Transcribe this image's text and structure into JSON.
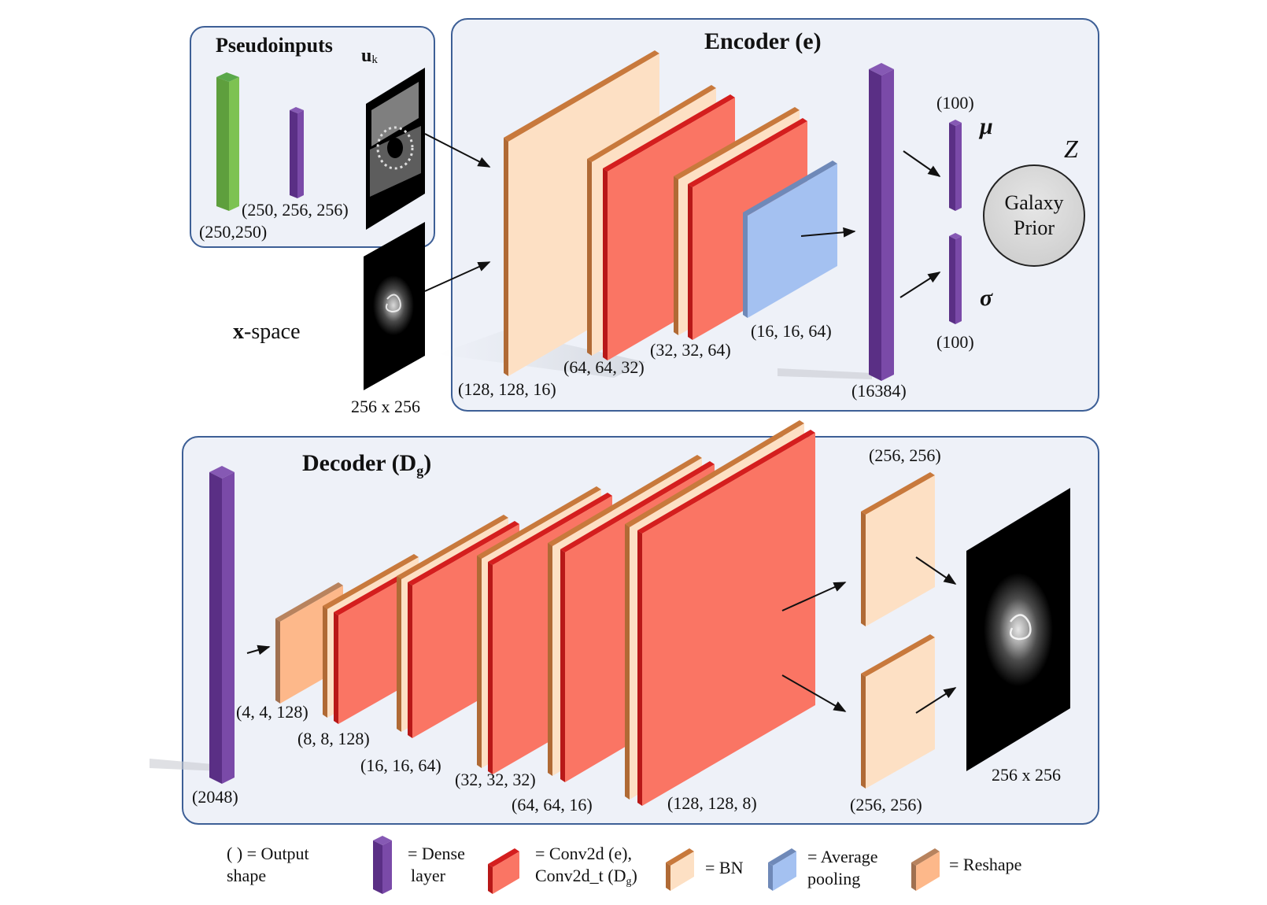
{
  "pseudo": {
    "title": "Pseudoinputs",
    "uk_main": "u",
    "uk_sub": "k",
    "shape_green": "(250,250)",
    "shape_purple": "(250, 256, 256)"
  },
  "xspace": {
    "label_bold": "x",
    "label_rest": "-space",
    "size": "256 x 256"
  },
  "encoder": {
    "title": "Encoder (e)",
    "shapes": [
      "(128, 128, 16)",
      "(64, 64, 32)",
      "(32, 32, 64)",
      "(16, 16, 64)",
      "(16384)"
    ],
    "mu_shape": "(100)",
    "sigma_shape": "(100)",
    "mu_symbol": "μ",
    "sigma_symbol": "σ",
    "z_symbol": "Z",
    "prior_line1": "Galaxy",
    "prior_line2": "Prior"
  },
  "decoder": {
    "title_main": "Decoder (D",
    "title_sub": "g",
    "title_close": ")",
    "shapes": [
      "(2048)",
      "(4, 4, 128)",
      "(8, 8, 128)",
      "(16, 16, 64)",
      "(32, 32, 32)",
      "(64, 64, 16)",
      "(128, 128, 8)"
    ],
    "out_shape_top": "(256, 256)",
    "out_shape_bottom": "(256, 256)",
    "out_size": "256 x 256"
  },
  "legend": {
    "output_shape_1": "(      ) = Output",
    "output_shape_2": "shape",
    "dense_1": "= Dense",
    "dense_2": "layer",
    "conv_1": "= Conv2d (e),",
    "conv_2": "Conv2d_t (D",
    "conv_2_sub": "g",
    "conv_2_close": ")",
    "bn": "= BN",
    "pool_1": "= Average",
    "pool_2": "pooling",
    "reshape": "= Reshape"
  },
  "colors": {
    "panel_fill": "#eef1f8",
    "panel_stroke": "#3d5f96",
    "dense": "#6a3c96",
    "bn_face": "#fde0c4",
    "bn_edge": "#c8793c",
    "conv_face": "#fa7564",
    "conv_edge": "#d41e1e",
    "pool_face": "#a4c1f1",
    "pool_edge": "#6f89b8",
    "reshape_face": "#fdb88a",
    "reshape_edge": "#b8835e",
    "green": "#7dc252"
  }
}
